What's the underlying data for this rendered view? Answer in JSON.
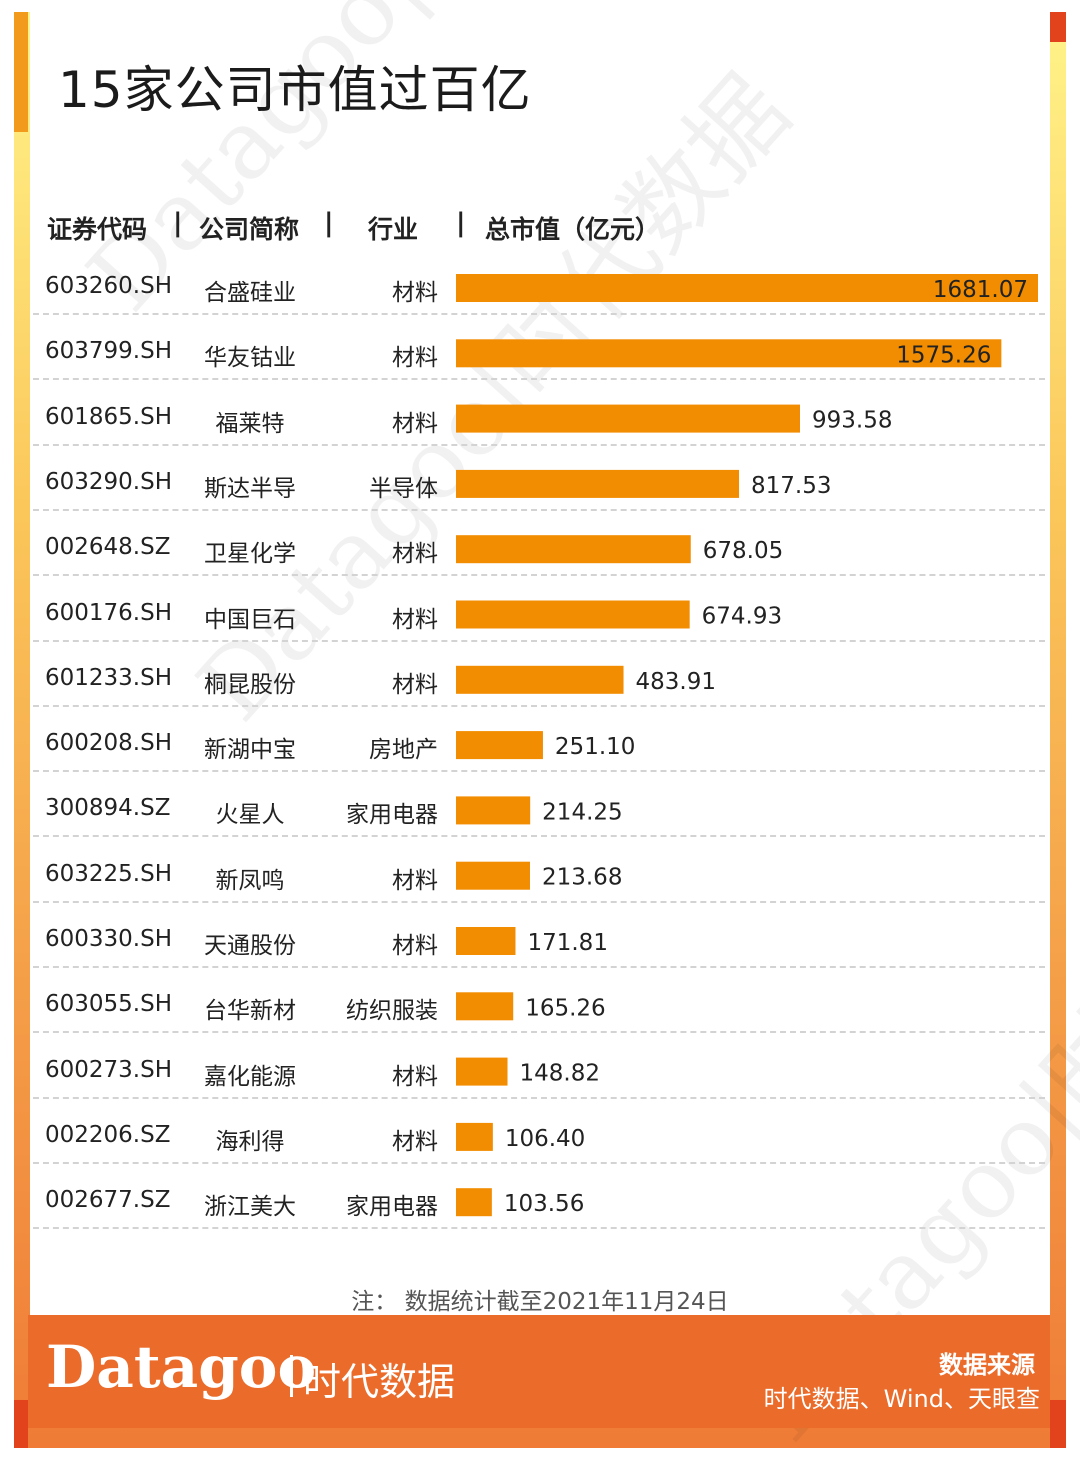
{
  "title": "15家公司市值过百亿",
  "headers": {
    "code": "证券代码",
    "name": "公司简称",
    "industry": "行业",
    "value": "总市值（亿元）"
  },
  "separators": [
    "|",
    "|",
    "|"
  ],
  "rows": [
    {
      "code": "603260.SH",
      "name": "合盛硅业",
      "industry": "材料",
      "value": "1681.07"
    },
    {
      "code": "603799.SH",
      "name": "华友钴业",
      "industry": "材料",
      "value": "1575.26"
    },
    {
      "code": "601865.SH",
      "name": "福莱特",
      "industry": "材料",
      "value": "993.58"
    },
    {
      "code": "603290.SH",
      "name": "斯达半导",
      "industry": "半导体",
      "value": "817.53"
    },
    {
      "code": "002648.SZ",
      "name": "卫星化学",
      "industry": "材料",
      "value": "678.05"
    },
    {
      "code": "600176.SH",
      "name": "中国巨石",
      "industry": "材料",
      "value": "674.93"
    },
    {
      "code": "601233.SH",
      "name": "桐昆股份",
      "industry": "材料",
      "value": "483.91"
    },
    {
      "code": "600208.SH",
      "name": "新湖中宝",
      "industry": "房地产",
      "value": "251.10"
    },
    {
      "code": "300894.SZ",
      "name": "火星人",
      "industry": "家用电器",
      "value": "214.25"
    },
    {
      "code": "603225.SH",
      "name": "新凤鸣",
      "industry": "材料",
      "value": "213.68"
    },
    {
      "code": "600330.SH",
      "name": "天通股份",
      "industry": "材料",
      "value": "171.81"
    },
    {
      "code": "603055.SH",
      "name": "台华新材",
      "industry": "纺织服装",
      "value": "165.26"
    },
    {
      "code": "600273.SH",
      "name": "嘉化能源",
      "industry": "材料",
      "value": "148.82"
    },
    {
      "code": "002206.SZ",
      "name": "海利得",
      "industry": "材料",
      "value": "106.40"
    },
    {
      "code": "002677.SZ",
      "name": "浙江美大",
      "industry": "家用电器",
      "value": "103.56"
    }
  ],
  "chart_data": {
    "type": "bar",
    "orientation": "horizontal",
    "title": "15家公司市值过百亿",
    "categories": [
      "合盛硅业",
      "华友钴业",
      "福莱特",
      "斯达半导",
      "卫星化学",
      "中国巨石",
      "桐昆股份",
      "新湖中宝",
      "火星人",
      "新凤鸣",
      "天通股份",
      "台华新材",
      "嘉化能源",
      "海利得",
      "浙江美大"
    ],
    "values": [
      1681.07,
      1575.26,
      993.58,
      817.53,
      678.05,
      674.93,
      483.91,
      251.1,
      214.25,
      213.68,
      171.81,
      165.26,
      148.82,
      106.4,
      103.56
    ],
    "ylabel": "总市值（亿元）",
    "grid": false,
    "xlim": [
      0,
      1681.07
    ]
  },
  "colors": {
    "bar": "#f28c00",
    "frame_top": "#fff48a",
    "frame_bottom": "#ef7b36",
    "footer": "#eb6b2a",
    "accent_red": "#e2421c"
  },
  "watermarks": [
    "Datagoo|时代数据",
    "Datagoo|时代数据",
    "Datagoo|时代数据"
  ],
  "note": "注：  数据统计截至2021年11月24日",
  "footer": {
    "logo_en": "Datagoo",
    "logo_cn": "时代数据",
    "source_label": "数据来源",
    "source_text": "时代数据、Wind、天眼查"
  }
}
